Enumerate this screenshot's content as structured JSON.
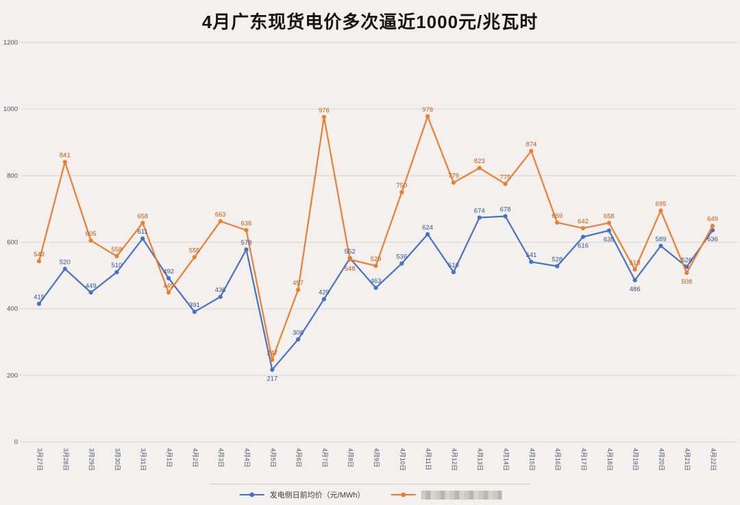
{
  "title": "4月广东现货电价多次逼近1000元/兆瓦时",
  "colors": {
    "background": "#f3f0ed",
    "gridline": "#d8d5d2",
    "tick_text": "#44546a",
    "title_text": "#141414"
  },
  "chart_data": {
    "type": "line",
    "title": "4月广东现货电价多次逼近1000元/兆瓦时",
    "xlabel": "",
    "ylabel": "",
    "ylim": [
      0,
      1200
    ],
    "yticks": [
      0,
      200,
      400,
      600,
      800,
      1000,
      1200
    ],
    "grid": true,
    "legend_position": "bottom",
    "categories": [
      "3月27日",
      "3月28日",
      "3月29日",
      "3月30日",
      "3月31日",
      "4月1日",
      "4月2日",
      "4月3日",
      "4月4日",
      "4月5日",
      "4月6日",
      "4月7日",
      "4月8日",
      "4月9日",
      "4月10日",
      "4月11日",
      "4月12日",
      "4月13日",
      "4月14日",
      "4月15日",
      "4月16日",
      "4月17日",
      "4月18日",
      "4月19日",
      "4月20日",
      "4月21日",
      "4月22日"
    ],
    "series": [
      {
        "name": "发电侧日前均价（元/MWh）",
        "name_redacted": false,
        "color": "#4472c4",
        "label_color": "#31538f",
        "values": [
          415,
          520,
          449,
          510,
          611,
          492,
          391,
          436,
          578,
          217,
          308,
          429,
          552,
          463,
          536,
          624,
          510,
          674,
          678,
          541,
          528,
          616,
          635,
          486,
          589,
          526,
          636
        ]
      },
      {
        "name": "",
        "name_redacted": true,
        "color": "#ed7d31",
        "label_color": "#bf5b11",
        "values": [
          543,
          841,
          605,
          558,
          658,
          449,
          555,
          663,
          636,
          247,
          457,
          976,
          548,
          529,
          750,
          978,
          779,
          823,
          775,
          874,
          659,
          642,
          658,
          518,
          695,
          508,
          649
        ]
      }
    ]
  }
}
